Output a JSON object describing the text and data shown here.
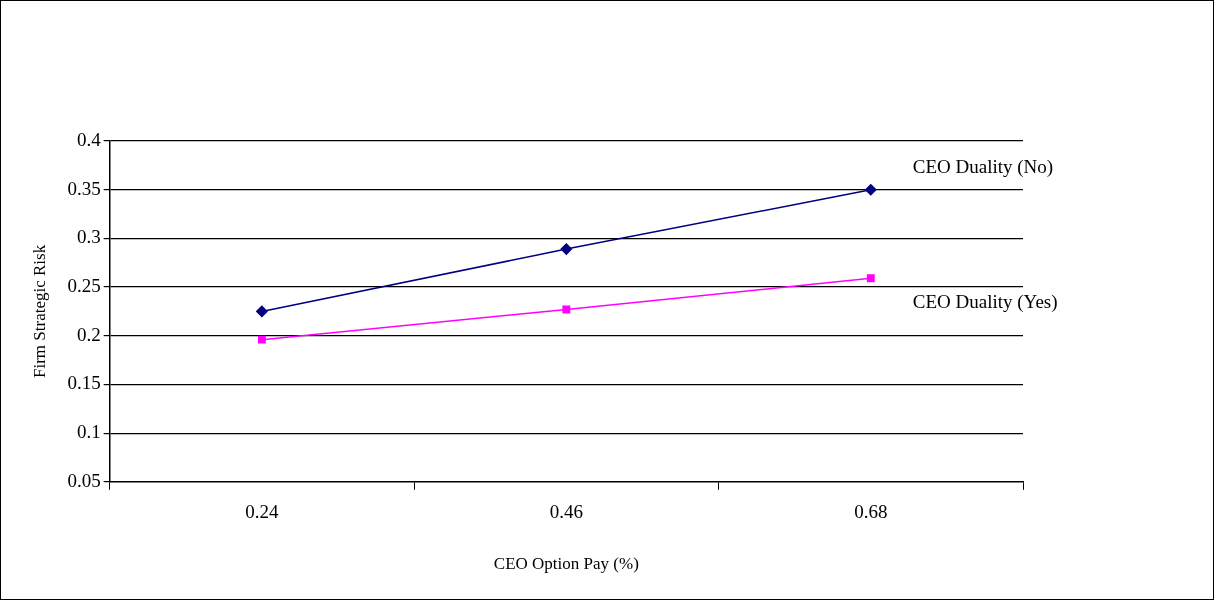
{
  "chart_data": {
    "type": "line",
    "xlabel": "CEO Option Pay (%)",
    "ylabel": "Firm Strategic Risk",
    "categories": [
      "0.24",
      "0.46",
      "0.68"
    ],
    "series": [
      {
        "name": "CEO Duality (No)",
        "color": "#000080",
        "marker": "diamond",
        "values": [
          0.225,
          0.289,
          0.35
        ]
      },
      {
        "name": "CEO Duality (Yes)",
        "color": "#ff00ff",
        "marker": "square",
        "values": [
          0.196,
          0.227,
          0.259
        ]
      }
    ],
    "ylim": [
      0.05,
      0.4
    ],
    "yticks": [
      0.05,
      0.1,
      0.15,
      0.2,
      0.25,
      0.3,
      0.35,
      0.4
    ],
    "grid": "y",
    "line_style": "solid"
  }
}
